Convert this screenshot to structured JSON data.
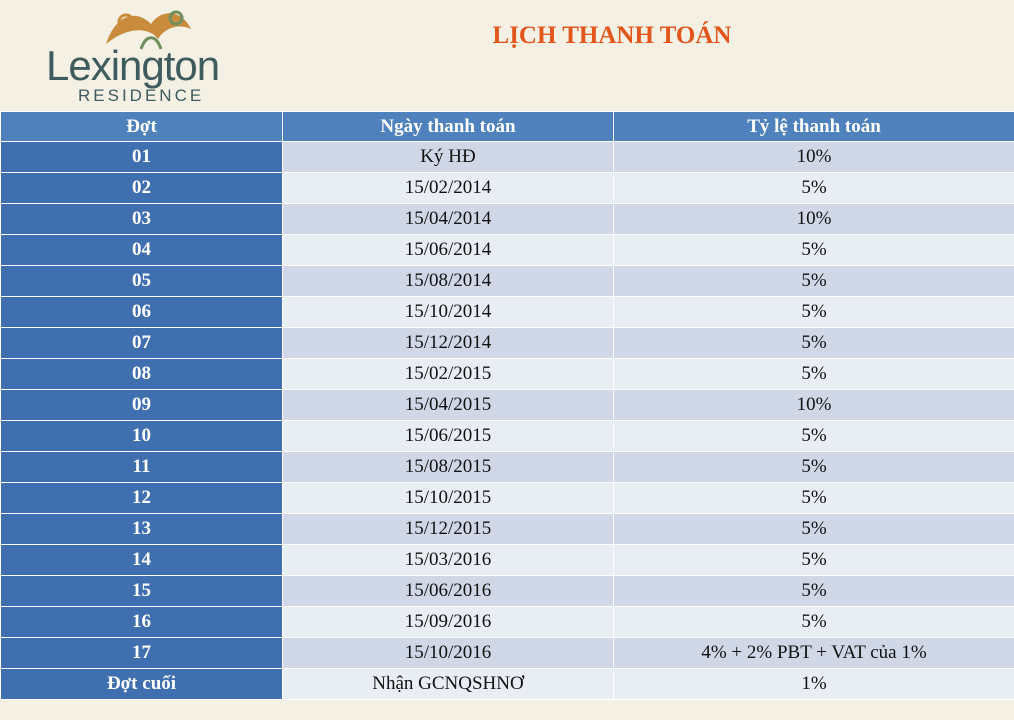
{
  "header": {
    "logo_name": "Lexington",
    "logo_subtitle": "RESIDENCE",
    "title": "LỊCH THANH TOÁN"
  },
  "table": {
    "columns": [
      "Đợt",
      "Ngày thanh toán",
      "Tỷ lệ thanh toán"
    ],
    "rows": [
      [
        "01",
        "Ký HĐ",
        "10%"
      ],
      [
        "02",
        "15/02/2014",
        "5%"
      ],
      [
        "03",
        "15/04/2014",
        "10%"
      ],
      [
        "04",
        "15/06/2014",
        "5%"
      ],
      [
        "05",
        "15/08/2014",
        "5%"
      ],
      [
        "06",
        "15/10/2014",
        "5%"
      ],
      [
        "07",
        "15/12/2014",
        "5%"
      ],
      [
        "08",
        "15/02/2015",
        "5%"
      ],
      [
        "09",
        "15/04/2015",
        "10%"
      ],
      [
        "10",
        "15/06/2015",
        "5%"
      ],
      [
        "11",
        "15/08/2015",
        "5%"
      ],
      [
        "12",
        "15/10/2015",
        "5%"
      ],
      [
        "13",
        "15/12/2015",
        "5%"
      ],
      [
        "14",
        "15/03/2016",
        "5%"
      ],
      [
        "15",
        "15/06/2016",
        "5%"
      ],
      [
        "16",
        "15/09/2016",
        "5%"
      ],
      [
        "17",
        "15/10/2016",
        "4% + 2% PBT + VAT của 1%"
      ],
      [
        "Đợt cuối",
        "Nhận GCNQSHNƠ",
        "1%"
      ]
    ]
  }
}
